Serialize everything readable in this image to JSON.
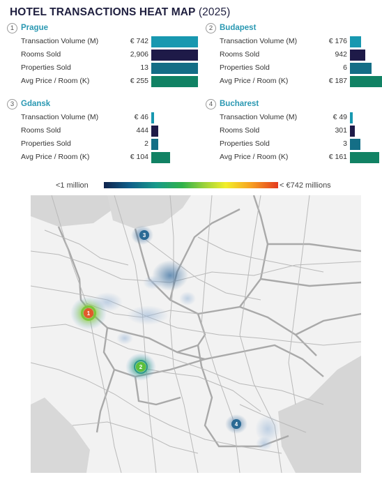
{
  "header": {
    "title_bold": "HOTEL TRANSACTIONS HEAT MAP",
    "title_year": "(2025)"
  },
  "cities": [
    {
      "num": "1",
      "name": "Prague",
      "metrics": [
        {
          "label": "Transaction Volume (M)",
          "value": "€ 742",
          "fraction": 1.0,
          "color": "#1898b0"
        },
        {
          "label": "Rooms Sold",
          "value": "2,906",
          "fraction": 1.0,
          "color": "#1e1a48"
        },
        {
          "label": "Properties Sold",
          "value": "13",
          "fraction": 1.0,
          "color": "#146e86"
        },
        {
          "label": "Avg Price / Room (K)",
          "value": "€ 255",
          "fraction": 1.0,
          "color": "#118264"
        }
      ]
    },
    {
      "num": "2",
      "name": "Budapest",
      "metrics": [
        {
          "label": "Transaction Volume (M)",
          "value": "€ 176",
          "fraction": 0.237,
          "color": "#1898b0"
        },
        {
          "label": "Rooms Sold",
          "value": "942",
          "fraction": 0.324,
          "color": "#1e1a48"
        },
        {
          "label": "Properties Sold",
          "value": "6",
          "fraction": 0.46,
          "color": "#146e86"
        },
        {
          "label": "Avg Price / Room (K)",
          "value": "€ 187",
          "fraction": 0.733,
          "color": "#118264"
        }
      ]
    },
    {
      "num": "3",
      "name": "Gdansk",
      "metrics": [
        {
          "label": "Transaction Volume (M)",
          "value": "€ 46",
          "fraction": 0.062,
          "color": "#1898b0"
        },
        {
          "label": "Rooms Sold",
          "value": "444",
          "fraction": 0.153,
          "color": "#1e1a48"
        },
        {
          "label": "Properties Sold",
          "value": "2",
          "fraction": 0.154,
          "color": "#146e86"
        },
        {
          "label": "Avg Price / Room (K)",
          "value": "€ 104",
          "fraction": 0.408,
          "color": "#118264"
        }
      ]
    },
    {
      "num": "4",
      "name": "Bucharest",
      "metrics": [
        {
          "label": "Transaction Volume (M)",
          "value": "€ 49",
          "fraction": 0.066,
          "color": "#1898b0"
        },
        {
          "label": "Rooms Sold",
          "value": "301",
          "fraction": 0.104,
          "color": "#1e1a48"
        },
        {
          "label": "Properties Sold",
          "value": "3",
          "fraction": 0.23,
          "color": "#146e86"
        },
        {
          "label": "Avg Price / Room (K)",
          "value": "€ 161",
          "fraction": 0.631,
          "color": "#118264"
        }
      ]
    }
  ],
  "legend": {
    "low": "<1 million",
    "high": "< €742 millions"
  },
  "map": {
    "markers": [
      {
        "num": "1",
        "intensity": "high",
        "color": "#e05a2b"
      },
      {
        "num": "2",
        "intensity": "medium",
        "color": "#5cc03a"
      },
      {
        "num": "3",
        "intensity": "low",
        "color": "#2a6a94"
      },
      {
        "num": "4",
        "intensity": "low",
        "color": "#2a6a94"
      }
    ]
  }
}
